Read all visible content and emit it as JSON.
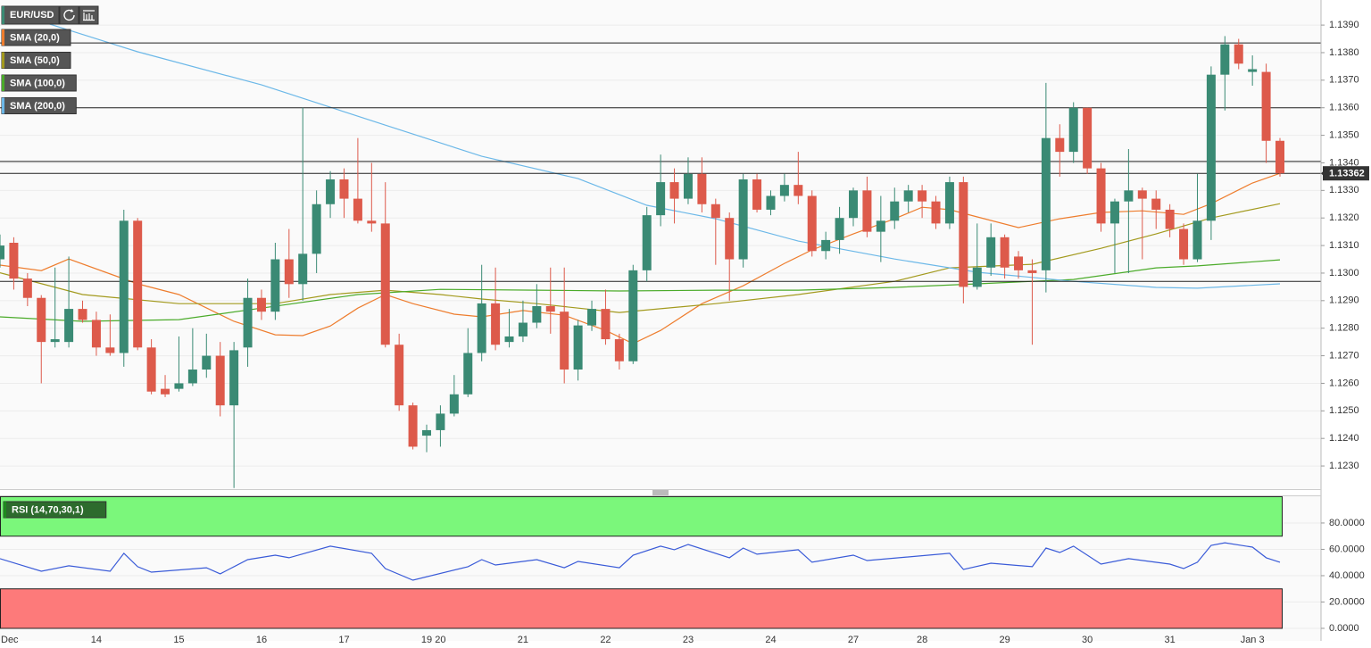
{
  "chart_data": [
    {
      "type": "candlestick",
      "symbol": "EUR/USD",
      "categories": [
        "Dec",
        null,
        null,
        null,
        null,
        null,
        null,
        "14",
        null,
        null,
        null,
        null,
        null,
        "15",
        null,
        null,
        null,
        null,
        null,
        "16",
        null,
        null,
        null,
        null,
        null,
        "17",
        null,
        null,
        null,
        null,
        null,
        "19",
        "20",
        null,
        null,
        null,
        null,
        null,
        "21",
        null,
        null,
        null,
        null,
        null,
        "22",
        null,
        null,
        null,
        null,
        null,
        "23",
        null,
        null,
        null,
        null,
        null,
        "24",
        null,
        null,
        null,
        null,
        null,
        "27",
        null,
        null,
        null,
        null,
        "28",
        null,
        null,
        null,
        null,
        null,
        "29",
        null,
        null,
        null,
        null,
        null,
        "30",
        null,
        null,
        null,
        null,
        null,
        "31",
        null,
        null,
        null,
        null,
        null,
        "Jan 3",
        null,
        null
      ],
      "open": [
        1.1305,
        1.1311,
        1.1298,
        1.1291,
        1.1275,
        1.1275,
        1.1287,
        1.1283,
        1.1273,
        1.1271,
        1.1319,
        1.1273,
        1.1258,
        1.1258,
        1.126,
        1.1265,
        1.127,
        1.1252,
        1.1273,
        1.1291,
        1.1286,
        1.1305,
        1.1296,
        1.1307,
        1.1325,
        1.1334,
        1.1327,
        1.1319,
        1.1318,
        1.1274,
        1.1252,
        1.1241,
        1.1243,
        1.1249,
        1.1256,
        1.1271,
        1.1289,
        1.1275,
        1.1277,
        1.1282,
        1.1288,
        1.1286,
        1.1265,
        1.1281,
        1.1287,
        1.1276,
        1.1268,
        1.1301,
        1.1321,
        1.1333,
        1.1327,
        1.1336,
        1.1325,
        1.132,
        1.1305,
        1.1334,
        1.1323,
        1.1328,
        1.1332,
        1.1328,
        1.1308,
        1.1312,
        1.132,
        1.133,
        1.1315,
        1.1319,
        1.1326,
        1.133,
        1.1326,
        1.1318,
        1.1333,
        1.1295,
        1.1302,
        1.1313,
        1.1306,
        1.1301,
        1.1301,
        1.1349,
        1.1344,
        1.136,
        1.1338,
        1.1318,
        1.1326,
        1.133,
        1.1327,
        1.1323,
        1.1316,
        1.1305,
        1.1319,
        1.1372,
        1.1383,
        1.1373,
        1.1373,
        1.1348
      ],
      "high": [
        1.1314,
        1.1313,
        1.13,
        1.1292,
        1.1302,
        1.1306,
        1.129,
        1.1286,
        1.1285,
        1.1323,
        1.132,
        1.1276,
        1.1263,
        1.1277,
        1.128,
        1.1278,
        1.1275,
        1.1275,
        1.1298,
        1.1294,
        1.1311,
        1.1316,
        1.136,
        1.133,
        1.1337,
        1.1338,
        1.1349,
        1.134,
        1.1333,
        1.1278,
        1.1253,
        1.1245,
        1.1252,
        1.1263,
        1.128,
        1.1303,
        1.1302,
        1.1287,
        1.129,
        1.1296,
        1.1302,
        1.1302,
        1.1283,
        1.129,
        1.1294,
        1.1278,
        1.1303,
        1.1324,
        1.1343,
        1.1338,
        1.1342,
        1.1342,
        1.1327,
        1.1322,
        1.1336,
        1.1336,
        1.133,
        1.1336,
        1.1344,
        1.133,
        1.1315,
        1.1324,
        1.1331,
        1.1335,
        1.1328,
        1.1331,
        1.1332,
        1.1332,
        1.1328,
        1.1335,
        1.1335,
        1.1318,
        1.1318,
        1.1314,
        1.1308,
        1.1305,
        1.1369,
        1.1354,
        1.1362,
        1.136,
        1.134,
        1.1327,
        1.1345,
        1.1331,
        1.133,
        1.1325,
        1.1318,
        1.1336,
        1.1375,
        1.1386,
        1.1385,
        1.1379,
        1.1376,
        1.1349
      ],
      "low": [
        1.1302,
        1.1294,
        1.1288,
        1.126,
        1.1273,
        1.1273,
        1.1282,
        1.127,
        1.127,
        1.1266,
        1.1272,
        1.1256,
        1.1255,
        1.1257,
        1.1259,
        1.1262,
        1.1248,
        1.1222,
        1.1266,
        1.1283,
        1.1283,
        1.1291,
        1.129,
        1.13,
        1.132,
        1.132,
        1.1318,
        1.1315,
        1.1273,
        1.125,
        1.1236,
        1.1235,
        1.1237,
        1.1248,
        1.1255,
        1.1268,
        1.1272,
        1.1273,
        1.1275,
        1.128,
        1.1278,
        1.126,
        1.1261,
        1.1279,
        1.1274,
        1.1265,
        1.1267,
        1.1297,
        1.1317,
        1.1318,
        1.1325,
        1.1322,
        1.1303,
        1.129,
        1.1302,
        1.1322,
        1.1321,
        1.1326,
        1.1325,
        1.1306,
        1.1305,
        1.1307,
        1.1317,
        1.1313,
        1.1304,
        1.1316,
        1.1322,
        1.132,
        1.1316,
        1.1316,
        1.1289,
        1.1294,
        1.1299,
        1.1298,
        1.1298,
        1.1274,
        1.1293,
        1.1335,
        1.134,
        1.1336,
        1.1315,
        1.13,
        1.13,
        1.1305,
        1.1316,
        1.1313,
        1.1303,
        1.1304,
        1.1312,
        1.1359,
        1.1374,
        1.1368,
        1.134,
        1.1335
      ],
      "close": [
        1.131,
        1.1298,
        1.1291,
        1.1275,
        1.1276,
        1.1287,
        1.1283,
        1.1273,
        1.1271,
        1.1319,
        1.1273,
        1.1257,
        1.1256,
        1.126,
        1.1265,
        1.127,
        1.1252,
        1.1272,
        1.1291,
        1.1286,
        1.1305,
        1.1296,
        1.1307,
        1.1325,
        1.1334,
        1.1327,
        1.1319,
        1.1318,
        1.1274,
        1.1252,
        1.1237,
        1.1243,
        1.1249,
        1.1256,
        1.1271,
        1.1289,
        1.1274,
        1.1277,
        1.1282,
        1.1288,
        1.1286,
        1.1265,
        1.1281,
        1.1287,
        1.1276,
        1.1268,
        1.1301,
        1.1321,
        1.1333,
        1.1327,
        1.1336,
        1.1325,
        1.132,
        1.1305,
        1.1334,
        1.1323,
        1.1328,
        1.1332,
        1.1328,
        1.1308,
        1.1312,
        1.132,
        1.133,
        1.1315,
        1.1319,
        1.1326,
        1.133,
        1.1326,
        1.1318,
        1.1333,
        1.1295,
        1.1302,
        1.1313,
        1.1302,
        1.1301,
        1.13,
        1.1349,
        1.1344,
        1.136,
        1.1338,
        1.1318,
        1.1326,
        1.133,
        1.1327,
        1.1323,
        1.1316,
        1.1305,
        1.1319,
        1.1372,
        1.1383,
        1.1376,
        1.1374,
        1.1348,
        1.13362
      ],
      "up_color": "#3a8a74",
      "down_color": "#dd5a4b",
      "series": [
        {
          "name": "SMA (20,0)",
          "color": "#ee7d2e",
          "x": [
            0,
            3,
            5,
            10,
            13,
            17,
            20,
            22,
            24,
            26,
            28,
            30,
            33,
            35,
            38,
            41,
            44,
            46,
            48,
            51,
            54,
            57,
            59,
            62,
            65,
            67,
            69,
            71,
            74,
            77,
            80,
            83,
            86,
            88,
            91,
            93
          ],
          "values": [
            1.13029,
            1.13009,
            1.13051,
            1.12961,
            1.12922,
            1.12825,
            1.12776,
            1.12773,
            1.12808,
            1.12873,
            1.12922,
            1.12889,
            1.12851,
            1.12841,
            1.12864,
            1.12847,
            1.12792,
            1.12744,
            1.12792,
            1.12889,
            1.12954,
            1.13035,
            1.13084,
            1.13142,
            1.13197,
            1.13239,
            1.1323,
            1.13204,
            1.13165,
            1.13197,
            1.1322,
            1.13226,
            1.13213,
            1.13252,
            1.13327,
            1.13362
          ]
        },
        {
          "name": "SMA (50,0)",
          "color": "#a39a1e",
          "x": [
            0,
            6,
            13,
            17,
            20,
            24,
            28,
            32,
            35,
            39,
            45,
            52,
            58,
            65,
            69,
            75,
            80,
            84,
            88,
            93
          ],
          "values": [
            1.13001,
            1.12922,
            1.12889,
            1.12889,
            1.12889,
            1.12922,
            1.12938,
            1.12922,
            1.12906,
            1.12889,
            1.12857,
            1.12889,
            1.12922,
            1.1297,
            1.13019,
            1.13032,
            1.1309,
            1.13142,
            1.132,
            1.13252
          ]
        },
        {
          "name": "SMA (100,0)",
          "color": "#4bab2a",
          "x": [
            0,
            6,
            13,
            19,
            26,
            32,
            39,
            45,
            52,
            58,
            65,
            71,
            78,
            84,
            87,
            93
          ],
          "values": [
            1.12841,
            1.12825,
            1.12831,
            1.12873,
            1.12922,
            1.12941,
            1.12938,
            1.12935,
            1.12938,
            1.12938,
            1.12948,
            1.12961,
            1.12977,
            1.13019,
            1.13026,
            1.13048
          ]
        },
        {
          "name": "SMA (200,0)",
          "color": "#6cb8e8",
          "x": [
            3,
            10,
            19,
            28,
            35,
            42,
            47,
            52,
            58,
            65,
            71,
            78,
            84,
            87,
            93
          ],
          "values": [
            1.13913,
            1.13803,
            1.13683,
            1.13537,
            1.13424,
            1.13343,
            1.13246,
            1.13197,
            1.13116,
            1.13051,
            1.13003,
            1.1297,
            1.12948,
            1.12945,
            1.12961
          ]
        }
      ],
      "hlines": [
        1.13835,
        1.136,
        1.13405,
        1.13362,
        1.1297
      ],
      "last_price": {
        "value": 1.13362,
        "label": "1.13362"
      },
      "ylim": [
        1.12216,
        1.13991
      ],
      "yticks": [
        {
          "value": 1.123,
          "label": "1.1230"
        },
        {
          "value": 1.124,
          "label": "1.1240"
        },
        {
          "value": 1.125,
          "label": "1.1250"
        },
        {
          "value": 1.126,
          "label": "1.1260"
        },
        {
          "value": 1.127,
          "label": "1.1270"
        },
        {
          "value": 1.128,
          "label": "1.1280"
        },
        {
          "value": 1.129,
          "label": "1.1290"
        },
        {
          "value": 1.13,
          "label": "1.1300"
        },
        {
          "value": 1.131,
          "label": "1.1310"
        },
        {
          "value": 1.132,
          "label": "1.1320"
        },
        {
          "value": 1.133,
          "label": "1.1330"
        },
        {
          "value": 1.134,
          "label": "1.1340"
        },
        {
          "value": 1.135,
          "label": "1.1350"
        },
        {
          "value": 1.136,
          "label": "1.1360"
        },
        {
          "value": 1.137,
          "label": "1.1370"
        },
        {
          "value": 1.138,
          "label": "1.1380"
        },
        {
          "value": 1.139,
          "label": "1.1390"
        }
      ],
      "grid": true
    },
    {
      "type": "line",
      "series": [
        {
          "name": "RSI (14,70,30,1)",
          "color": "#3a5bd8",
          "x": [
            0,
            3,
            5,
            8,
            9,
            10,
            11,
            15,
            16,
            18,
            20,
            21,
            24,
            27,
            28,
            30,
            34,
            35,
            36,
            39,
            41,
            42,
            45,
            46,
            48,
            49,
            50,
            53,
            54,
            55,
            58,
            59,
            62,
            63,
            69,
            70,
            72,
            75,
            76,
            77,
            78,
            80,
            82,
            85,
            86,
            87,
            88,
            89,
            91,
            92,
            93
          ],
          "values": [
            52.9,
            43.4,
            47.5,
            43.4,
            57,
            46.8,
            42.7,
            46,
            41.4,
            52.2,
            55.6,
            53.6,
            62.4,
            57,
            45.4,
            36.6,
            46.8,
            52.2,
            48.1,
            52.2,
            46,
            50.8,
            46,
            55.6,
            62.4,
            59.7,
            63.7,
            53.6,
            61,
            56.3,
            59.7,
            50.2,
            55.6,
            51.5,
            57,
            44.7,
            49.5,
            46.8,
            61,
            57.6,
            62.4,
            48.8,
            52.9,
            48.8,
            45.4,
            50.2,
            63,
            65,
            61.7,
            53.6,
            50.2
          ]
        }
      ],
      "zones": [
        {
          "from": 70,
          "to": 100,
          "color": "#7bf77b"
        },
        {
          "from": 0,
          "to": 30,
          "color": "#fd7a7a"
        }
      ],
      "ylim": [
        -9.5,
        100.3
      ],
      "yticks": [
        {
          "value": 0,
          "label": "0.0000"
        },
        {
          "value": 20,
          "label": "20.0000"
        },
        {
          "value": 40,
          "label": "40.0000"
        },
        {
          "value": 60,
          "label": "60.0000"
        },
        {
          "value": 80,
          "label": "80.0000"
        }
      ],
      "grid": true
    }
  ]
}
